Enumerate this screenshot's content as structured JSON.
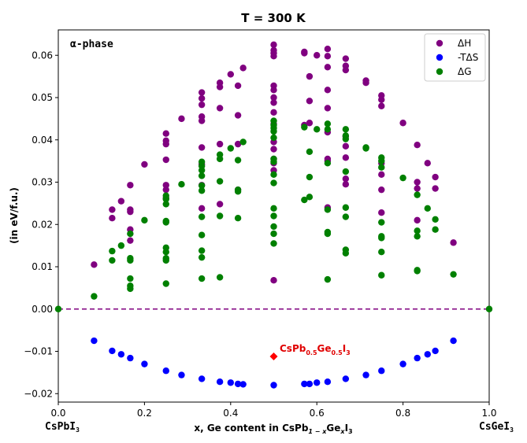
{
  "chart_data": {
    "type": "scatter",
    "title": "T = 300 K",
    "phase_label": "α-phase",
    "xlabel": {
      "prefix": "x, Ge content in CsPb",
      "sub1": "1 − x",
      "mid": "Ge",
      "sub2": "x",
      "suffix": "I",
      "sub3": "3"
    },
    "ylabel": "(in eV/f.u.)",
    "xlim": [
      0.0,
      1.0
    ],
    "ylim": [
      -0.022,
      0.066
    ],
    "xticks": [
      "0.0",
      "0.2",
      "0.4",
      "0.6",
      "0.8",
      "1.0"
    ],
    "yticks": [
      "−0.02",
      "−0.01",
      "0.00",
      "0.01",
      "0.02",
      "0.03",
      "0.04",
      "0.05",
      "0.06"
    ],
    "xtick_values": [
      0.0,
      0.2,
      0.4,
      0.6,
      0.8,
      1.0
    ],
    "ytick_values": [
      -0.02,
      -0.01,
      0.0,
      0.01,
      0.02,
      0.03,
      0.04,
      0.05,
      0.06
    ],
    "end_labels": {
      "left": {
        "main": "CsPbI",
        "sub": "3"
      },
      "right": {
        "main": "CsGeI",
        "sub": "3"
      }
    },
    "reference_line": {
      "y": 0.0,
      "color": "#800080",
      "style": "dashed"
    },
    "legend": {
      "position": "top-right",
      "entries": [
        "ΔH",
        "-TΔS",
        "ΔG"
      ]
    },
    "series": [
      {
        "name": "ΔH",
        "color": "#800080",
        "points": [
          [
            0.083,
            0.0105
          ],
          [
            0.125,
            0.0235
          ],
          [
            0.125,
            0.0215
          ],
          [
            0.146,
            0.0255
          ],
          [
            0.167,
            0.0293
          ],
          [
            0.167,
            0.0235
          ],
          [
            0.167,
            0.023
          ],
          [
            0.167,
            0.0188
          ],
          [
            0.167,
            0.0162
          ],
          [
            0.2,
            0.0342
          ],
          [
            0.25,
            0.0415
          ],
          [
            0.25,
            0.0398
          ],
          [
            0.25,
            0.039
          ],
          [
            0.25,
            0.0353
          ],
          [
            0.25,
            0.0293
          ],
          [
            0.25,
            0.0282
          ],
          [
            0.25,
            0.0262
          ],
          [
            0.286,
            0.045
          ],
          [
            0.333,
            0.0512
          ],
          [
            0.333,
            0.0498
          ],
          [
            0.333,
            0.0483
          ],
          [
            0.333,
            0.0455
          ],
          [
            0.333,
            0.0445
          ],
          [
            0.333,
            0.0382
          ],
          [
            0.333,
            0.0342
          ],
          [
            0.333,
            0.0293
          ],
          [
            0.333,
            0.0238
          ],
          [
            0.375,
            0.0535
          ],
          [
            0.375,
            0.0525
          ],
          [
            0.375,
            0.0475
          ],
          [
            0.375,
            0.039
          ],
          [
            0.375,
            0.0248
          ],
          [
            0.4,
            0.0555
          ],
          [
            0.417,
            0.0528
          ],
          [
            0.417,
            0.0458
          ],
          [
            0.417,
            0.039
          ],
          [
            0.417,
            0.0282
          ],
          [
            0.429,
            0.057
          ],
          [
            0.5,
            0.0625
          ],
          [
            0.5,
            0.0612
          ],
          [
            0.5,
            0.0605
          ],
          [
            0.5,
            0.0598
          ],
          [
            0.5,
            0.0528
          ],
          [
            0.5,
            0.0518
          ],
          [
            0.5,
            0.05
          ],
          [
            0.5,
            0.0488
          ],
          [
            0.5,
            0.0465
          ],
          [
            0.5,
            0.0438
          ],
          [
            0.5,
            0.0395
          ],
          [
            0.5,
            0.0378
          ],
          [
            0.5,
            0.0355
          ],
          [
            0.5,
            0.0345
          ],
          [
            0.5,
            0.0328
          ],
          [
            0.5,
            0.0068
          ],
          [
            0.571,
            0.0608
          ],
          [
            0.571,
            0.0605
          ],
          [
            0.571,
            0.0435
          ],
          [
            0.583,
            0.055
          ],
          [
            0.583,
            0.0492
          ],
          [
            0.583,
            0.044
          ],
          [
            0.6,
            0.06
          ],
          [
            0.625,
            0.0615
          ],
          [
            0.625,
            0.0598
          ],
          [
            0.625,
            0.0572
          ],
          [
            0.625,
            0.0518
          ],
          [
            0.625,
            0.0475
          ],
          [
            0.625,
            0.0418
          ],
          [
            0.625,
            0.0355
          ],
          [
            0.625,
            0.035
          ],
          [
            0.625,
            0.024
          ],
          [
            0.667,
            0.0592
          ],
          [
            0.667,
            0.0575
          ],
          [
            0.667,
            0.0565
          ],
          [
            0.667,
            0.0408
          ],
          [
            0.667,
            0.0385
          ],
          [
            0.667,
            0.0358
          ],
          [
            0.667,
            0.0308
          ],
          [
            0.667,
            0.0295
          ],
          [
            0.714,
            0.054
          ],
          [
            0.714,
            0.0535
          ],
          [
            0.75,
            0.0505
          ],
          [
            0.75,
            0.0495
          ],
          [
            0.75,
            0.048
          ],
          [
            0.75,
            0.0345
          ],
          [
            0.75,
            0.0318
          ],
          [
            0.75,
            0.0282
          ],
          [
            0.75,
            0.0228
          ],
          [
            0.8,
            0.044
          ],
          [
            0.833,
            0.0388
          ],
          [
            0.833,
            0.03
          ],
          [
            0.833,
            0.0285
          ],
          [
            0.833,
            0.021
          ],
          [
            0.857,
            0.0345
          ],
          [
            0.875,
            0.0312
          ],
          [
            0.875,
            0.0285
          ],
          [
            0.917,
            0.0157
          ]
        ]
      },
      {
        "name": "-TΔS",
        "color": "#0000ff",
        "points": [
          [
            0.083,
            -0.0075
          ],
          [
            0.125,
            -0.0099
          ],
          [
            0.146,
            -0.0107
          ],
          [
            0.167,
            -0.0116
          ],
          [
            0.2,
            -0.013
          ],
          [
            0.25,
            -0.0146
          ],
          [
            0.286,
            -0.0156
          ],
          [
            0.333,
            -0.0165
          ],
          [
            0.375,
            -0.0172
          ],
          [
            0.4,
            -0.0174
          ],
          [
            0.417,
            -0.0177
          ],
          [
            0.429,
            -0.0178
          ],
          [
            0.5,
            -0.018
          ],
          [
            0.571,
            -0.0177
          ],
          [
            0.583,
            -0.0177
          ],
          [
            0.6,
            -0.0174
          ],
          [
            0.625,
            -0.0172
          ],
          [
            0.667,
            -0.0165
          ],
          [
            0.714,
            -0.0156
          ],
          [
            0.75,
            -0.0146
          ],
          [
            0.8,
            -0.013
          ],
          [
            0.833,
            -0.0116
          ],
          [
            0.857,
            -0.0107
          ],
          [
            0.875,
            -0.0099
          ],
          [
            0.917,
            -0.0075
          ]
        ]
      },
      {
        "name": "ΔG",
        "color": "#008000",
        "points": [
          [
            0.0,
            0.0
          ],
          [
            1.0,
            0.0
          ],
          [
            0.083,
            0.003
          ],
          [
            0.125,
            0.0137
          ],
          [
            0.125,
            0.0115
          ],
          [
            0.146,
            0.015
          ],
          [
            0.167,
            0.0178
          ],
          [
            0.167,
            0.012
          ],
          [
            0.167,
            0.0115
          ],
          [
            0.167,
            0.0072
          ],
          [
            0.167,
            0.0055
          ],
          [
            0.167,
            0.0048
          ],
          [
            0.2,
            0.021
          ],
          [
            0.25,
            0.0268
          ],
          [
            0.25,
            0.026
          ],
          [
            0.25,
            0.0248
          ],
          [
            0.25,
            0.0208
          ],
          [
            0.25,
            0.0205
          ],
          [
            0.25,
            0.0145
          ],
          [
            0.25,
            0.0135
          ],
          [
            0.25,
            0.012
          ],
          [
            0.25,
            0.0115
          ],
          [
            0.25,
            0.006
          ],
          [
            0.286,
            0.0295
          ],
          [
            0.333,
            0.0348
          ],
          [
            0.333,
            0.0338
          ],
          [
            0.333,
            0.0328
          ],
          [
            0.333,
            0.0315
          ],
          [
            0.333,
            0.0292
          ],
          [
            0.333,
            0.028
          ],
          [
            0.333,
            0.0218
          ],
          [
            0.333,
            0.0175
          ],
          [
            0.333,
            0.0138
          ],
          [
            0.333,
            0.0122
          ],
          [
            0.333,
            0.0072
          ],
          [
            0.375,
            0.0365
          ],
          [
            0.375,
            0.0355
          ],
          [
            0.375,
            0.0302
          ],
          [
            0.375,
            0.022
          ],
          [
            0.375,
            0.0075
          ],
          [
            0.4,
            0.038
          ],
          [
            0.417,
            0.0352
          ],
          [
            0.417,
            0.0282
          ],
          [
            0.417,
            0.0278
          ],
          [
            0.417,
            0.0215
          ],
          [
            0.429,
            0.0395
          ],
          [
            0.5,
            0.0445
          ],
          [
            0.5,
            0.0435
          ],
          [
            0.5,
            0.0428
          ],
          [
            0.5,
            0.042
          ],
          [
            0.5,
            0.0405
          ],
          [
            0.5,
            0.0355
          ],
          [
            0.5,
            0.0348
          ],
          [
            0.5,
            0.0318
          ],
          [
            0.5,
            0.0298
          ],
          [
            0.5,
            0.0238
          ],
          [
            0.5,
            0.022
          ],
          [
            0.5,
            0.0195
          ],
          [
            0.5,
            0.0178
          ],
          [
            0.5,
            0.0155
          ],
          [
            0.571,
            0.043
          ],
          [
            0.571,
            0.0258
          ],
          [
            0.583,
            0.0372
          ],
          [
            0.583,
            0.0312
          ],
          [
            0.583,
            0.0265
          ],
          [
            0.6,
            0.0425
          ],
          [
            0.625,
            0.0438
          ],
          [
            0.625,
            0.0425
          ],
          [
            0.625,
            0.0345
          ],
          [
            0.625,
            0.0235
          ],
          [
            0.625,
            0.0182
          ],
          [
            0.625,
            0.0178
          ],
          [
            0.625,
            0.007
          ],
          [
            0.667,
            0.0425
          ],
          [
            0.667,
            0.041
          ],
          [
            0.667,
            0.0402
          ],
          [
            0.667,
            0.0325
          ],
          [
            0.667,
            0.024
          ],
          [
            0.667,
            0.0218
          ],
          [
            0.667,
            0.014
          ],
          [
            0.667,
            0.0132
          ],
          [
            0.714,
            0.0382
          ],
          [
            0.714,
            0.038
          ],
          [
            0.75,
            0.0358
          ],
          [
            0.75,
            0.035
          ],
          [
            0.75,
            0.0335
          ],
          [
            0.75,
            0.0205
          ],
          [
            0.75,
            0.0172
          ],
          [
            0.75,
            0.0168
          ],
          [
            0.75,
            0.0135
          ],
          [
            0.75,
            0.008
          ],
          [
            0.8,
            0.031
          ],
          [
            0.833,
            0.027
          ],
          [
            0.833,
            0.0185
          ],
          [
            0.833,
            0.0172
          ],
          [
            0.833,
            0.0092
          ],
          [
            0.833,
            0.009
          ],
          [
            0.857,
            0.0238
          ],
          [
            0.875,
            0.0212
          ],
          [
            0.875,
            0.0188
          ],
          [
            0.917,
            0.0082
          ]
        ]
      }
    ],
    "highlight": {
      "x": 0.5,
      "y": -0.0112,
      "color": "#ff0000",
      "marker": "diamond",
      "label": {
        "a": "CsPb",
        "b": "0.5",
        "c": "Ge",
        "d": "0.5",
        "e": "I",
        "f": "3"
      }
    }
  }
}
